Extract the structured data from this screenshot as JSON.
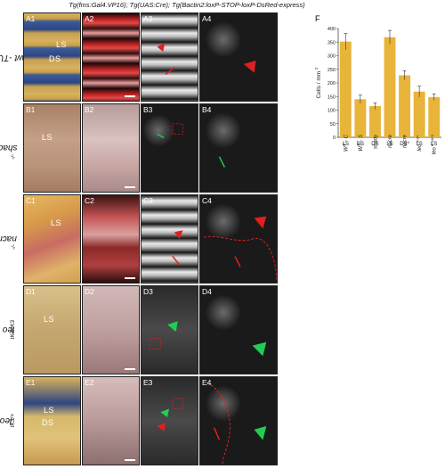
{
  "figure_title": "Tg(fms:Gal4.VP16); Tg(UAS:Cre); Tg(Bactin2:loxP-STOP-loxP-DsRed-express)",
  "rows": [
    {
      "key": "a",
      "label": "wt -TU",
      "label_sup": "",
      "panels": [
        "A1",
        "A2",
        "A3",
        "A4"
      ],
      "tissue_labels": [
        "LS",
        "DS"
      ]
    },
    {
      "key": "b",
      "label": "shady",
      "label_sup": "-/-",
      "panels": [
        "B1",
        "B2",
        "B3",
        "B4"
      ],
      "tissue_labels": [
        "LS"
      ]
    },
    {
      "key": "c",
      "label": "nacre",
      "label_sup": "-/-",
      "panels": [
        "C1",
        "C2",
        "C3",
        "C4"
      ],
      "tissue_labels": [
        "LS"
      ]
    },
    {
      "key": "d",
      "label": "leo",
      "label_sup": "tK3/tK3",
      "panels": [
        "D1",
        "D2",
        "D3",
        "D4"
      ],
      "tissue_labels": [
        "LS"
      ]
    },
    {
      "key": "e",
      "label": "leo",
      "label_sup": "tK3/+",
      "panels": [
        "E1",
        "E2",
        "E3",
        "E4"
      ],
      "tissue_labels": [
        "LS",
        "DS"
      ]
    }
  ],
  "chart_panel_label": "F",
  "chart_data": {
    "type": "bar",
    "ylabel": "Cells / mm",
    "ylabel_sup": "2",
    "ylim": [
      0,
      400
    ],
    "yticks": [
      0,
      50,
      100,
      150,
      200,
      250,
      300,
      350,
      400
    ],
    "grid": false,
    "bar_color": "#e8b43a",
    "bars": [
      {
        "name": "WT - C",
        "region": "LS",
        "value": 352,
        "error": 30
      },
      {
        "name": "WT - S",
        "region": "DS",
        "value": 140,
        "error": 15
      },
      {
        "name": "shady",
        "region": "DS",
        "value": 115,
        "error": 12
      },
      {
        "name": "nacre",
        "region": "LS",
        "value": 368,
        "error": 25
      },
      {
        "name": "nacre",
        "region": "DS*",
        "value": 228,
        "error": 17
      },
      {
        "name": "leo",
        "name_sup": "tK3/+",
        "region": "LS",
        "value": 168,
        "error": 20
      },
      {
        "name": "leo",
        "name_sup": "tK3/tK3",
        "region": "LS",
        "value": 148,
        "error": 12
      }
    ]
  }
}
